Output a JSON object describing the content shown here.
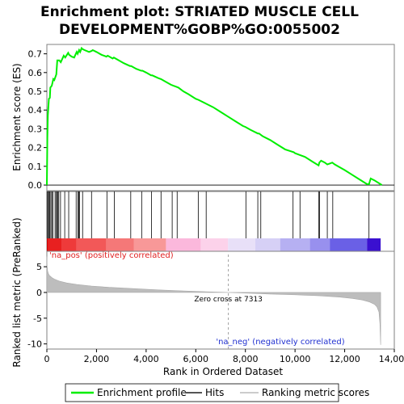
{
  "chart_data": {
    "type": "line",
    "title_lines": [
      "Enrichment plot: STRIATED MUSCLE CELL",
      "DEVELOPMENT%GOBP%GO:0055002"
    ],
    "xlabel": "Rank in Ordered Dataset",
    "xlim": [
      0,
      14000
    ],
    "x_ticks": [
      0,
      2000,
      4000,
      6000,
      8000,
      10000,
      12000,
      14000
    ],
    "x_tick_labels": [
      "0",
      "2,000",
      "4,000",
      "6,000",
      "8,000",
      "10,000",
      "12,000",
      "14,000"
    ],
    "enrichment": {
      "ylabel": "Enrichment score (ES)",
      "ylim": [
        -0.03,
        0.75
      ],
      "y_ticks": [
        0.0,
        0.1,
        0.2,
        0.3,
        0.4,
        0.5,
        0.6,
        0.7
      ],
      "y_tick_labels": [
        "0.0",
        "0.1",
        "0.2",
        "0.3",
        "0.4",
        "0.5",
        "0.6",
        "0.7"
      ],
      "series_name": "Enrichment profile",
      "color": "#00ee00",
      "x": [
        0,
        20,
        40,
        80,
        120,
        140,
        200,
        260,
        300,
        380,
        420,
        500,
        560,
        680,
        740,
        860,
        900,
        1000,
        1100,
        1200,
        1240,
        1300,
        1340,
        1400,
        1440,
        1520,
        1700,
        1800,
        1850,
        2000,
        2200,
        2400,
        2450,
        2650,
        2700,
        2900,
        3100,
        3350,
        3400,
        3600,
        3800,
        3850,
        4000,
        4200,
        4250,
        4500,
        4600,
        4800,
        5000,
        5100,
        5200,
        5300,
        5500,
        5700,
        6000,
        6100,
        6400,
        6700,
        7000,
        7300,
        7600,
        7900,
        8000,
        8200,
        8500,
        8550,
        8700,
        9000,
        9300,
        9600,
        9950,
        10000,
        10200,
        10400,
        10700,
        10950,
        10980,
        11050,
        11200,
        11300,
        11400,
        11500,
        11600,
        11800,
        12000,
        12300,
        12600,
        12900,
        12980,
        13050,
        13200,
        13500
      ],
      "y": [
        0.0,
        0.25,
        0.37,
        0.46,
        0.465,
        0.52,
        0.53,
        0.565,
        0.56,
        0.59,
        0.665,
        0.665,
        0.655,
        0.69,
        0.68,
        0.705,
        0.695,
        0.685,
        0.68,
        0.71,
        0.7,
        0.72,
        0.71,
        0.73,
        0.725,
        0.72,
        0.71,
        0.715,
        0.72,
        0.71,
        0.695,
        0.685,
        0.69,
        0.675,
        0.68,
        0.665,
        0.65,
        0.635,
        0.635,
        0.62,
        0.61,
        0.61,
        0.6,
        0.585,
        0.585,
        0.57,
        0.565,
        0.55,
        0.535,
        0.53,
        0.525,
        0.52,
        0.5,
        0.485,
        0.46,
        0.455,
        0.435,
        0.415,
        0.39,
        0.365,
        0.34,
        0.315,
        0.31,
        0.295,
        0.275,
        0.275,
        0.26,
        0.24,
        0.215,
        0.19,
        0.175,
        0.17,
        0.16,
        0.15,
        0.125,
        0.105,
        0.12,
        0.13,
        0.12,
        0.11,
        0.115,
        0.12,
        0.11,
        0.095,
        0.08,
        0.055,
        0.03,
        0.005,
        0.005,
        0.035,
        0.025,
        0.0
      ]
    },
    "hits": [
      10,
      40,
      80,
      110,
      160,
      200,
      240,
      330,
      380,
      420,
      440,
      480,
      550,
      720,
      880,
      1180,
      1250,
      1280,
      1320,
      1440,
      1800,
      2420,
      2720,
      3380,
      3820,
      4220,
      4600,
      5050,
      5250,
      6100,
      6420,
      8020,
      8500,
      8620,
      9920,
      10200,
      10950,
      10990,
      11300,
      11520,
      12980
    ],
    "ranking": {
      "ylabel": "Ranked list metric (PreRanked)",
      "ylim": [
        -11,
        8
      ],
      "y_ticks": [
        5,
        0,
        -5,
        -10
      ],
      "y_tick_labels": [
        "5",
        "0",
        "-5",
        "-10"
      ],
      "series_name": "Ranking metric scores",
      "x": [
        0,
        10,
        30,
        60,
        100,
        200,
        300,
        500,
        800,
        1200,
        1800,
        2500,
        3500,
        4500,
        5500,
        6500,
        7313,
        8000,
        9000,
        10000,
        11000,
        11800,
        12300,
        12700,
        13000,
        13200,
        13300,
        13380,
        13420,
        13450
      ],
      "y": [
        7.0,
        5.2,
        4.2,
        3.7,
        3.3,
        2.9,
        2.6,
        2.2,
        1.85,
        1.55,
        1.25,
        1.0,
        0.75,
        0.5,
        0.3,
        0.12,
        0.0,
        -0.12,
        -0.3,
        -0.45,
        -0.65,
        -0.9,
        -1.15,
        -1.45,
        -1.85,
        -2.3,
        -2.8,
        -3.8,
        -6.0,
        -10.2
      ],
      "zero_cross_label": "Zero cross at 7313",
      "pos_label": "'na_pos' (positively correlated)",
      "neg_label": "'na_neg' (negatively correlated)"
    },
    "legend": {
      "placement": "bottom",
      "entries": [
        {
          "name": "Enrichment profile",
          "color": "#00ee00"
        },
        {
          "name": "Hits",
          "color": "#555555"
        },
        {
          "name": "Ranking metric scores",
          "color": "#cccccc"
        }
      ]
    },
    "gradient_bar": {
      "segments": [
        {
          "start": 0,
          "end": 60,
          "color": "#d40000"
        },
        {
          "start": 60,
          "end": 600,
          "color": "#e82020"
        },
        {
          "start": 600,
          "end": 1200,
          "color": "#ee3a3a"
        },
        {
          "start": 1200,
          "end": 2400,
          "color": "#f25858"
        },
        {
          "start": 2400,
          "end": 3500,
          "color": "#f57878"
        },
        {
          "start": 3500,
          "end": 4800,
          "color": "#f89898"
        },
        {
          "start": 4800,
          "end": 6200,
          "color": "#fbb8dc"
        },
        {
          "start": 6200,
          "end": 7300,
          "color": "#fcd2ea"
        },
        {
          "start": 7300,
          "end": 8400,
          "color": "#e8e0f8"
        },
        {
          "start": 8400,
          "end": 9400,
          "color": "#d6d0f6"
        },
        {
          "start": 9400,
          "end": 10600,
          "color": "#b6b0f2"
        },
        {
          "start": 10600,
          "end": 11400,
          "color": "#9890ee"
        },
        {
          "start": 11400,
          "end": 12900,
          "color": "#6a60e6"
        },
        {
          "start": 12900,
          "end": 13450,
          "color": "#3a10d0"
        }
      ]
    }
  }
}
